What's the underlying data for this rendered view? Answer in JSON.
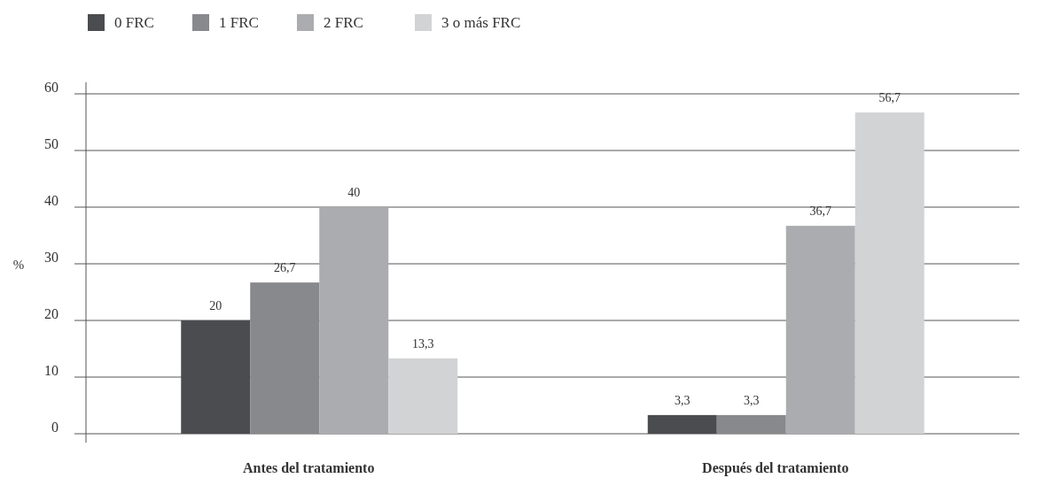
{
  "chart_data": {
    "type": "bar",
    "ylabel": "%",
    "categories": [
      "Antes del tratamiento",
      "Después del tratamiento"
    ],
    "series": [
      {
        "name": "0 FRC",
        "color": "#4b4c4f",
        "values": [
          20,
          3.3
        ],
        "value_labels": [
          "20",
          "3,3"
        ]
      },
      {
        "name": "1 FRC",
        "color": "#88898d",
        "values": [
          26.7,
          3.3
        ],
        "value_labels": [
          "26,7",
          "3,3"
        ]
      },
      {
        "name": "2 FRC",
        "color": "#abacaf",
        "values": [
          40,
          36.7
        ],
        "value_labels": [
          "40",
          "36,7"
        ]
      },
      {
        "name": "3 o más FRC",
        "color": "#d2d3d5",
        "values": [
          13.3,
          56.7
        ],
        "value_labels": [
          "13,3",
          "56,7"
        ]
      }
    ],
    "ylim": [
      0,
      60
    ],
    "yticks": [
      0,
      10,
      20,
      30,
      40,
      50,
      60
    ],
    "grid": "y",
    "legend": "top left"
  }
}
